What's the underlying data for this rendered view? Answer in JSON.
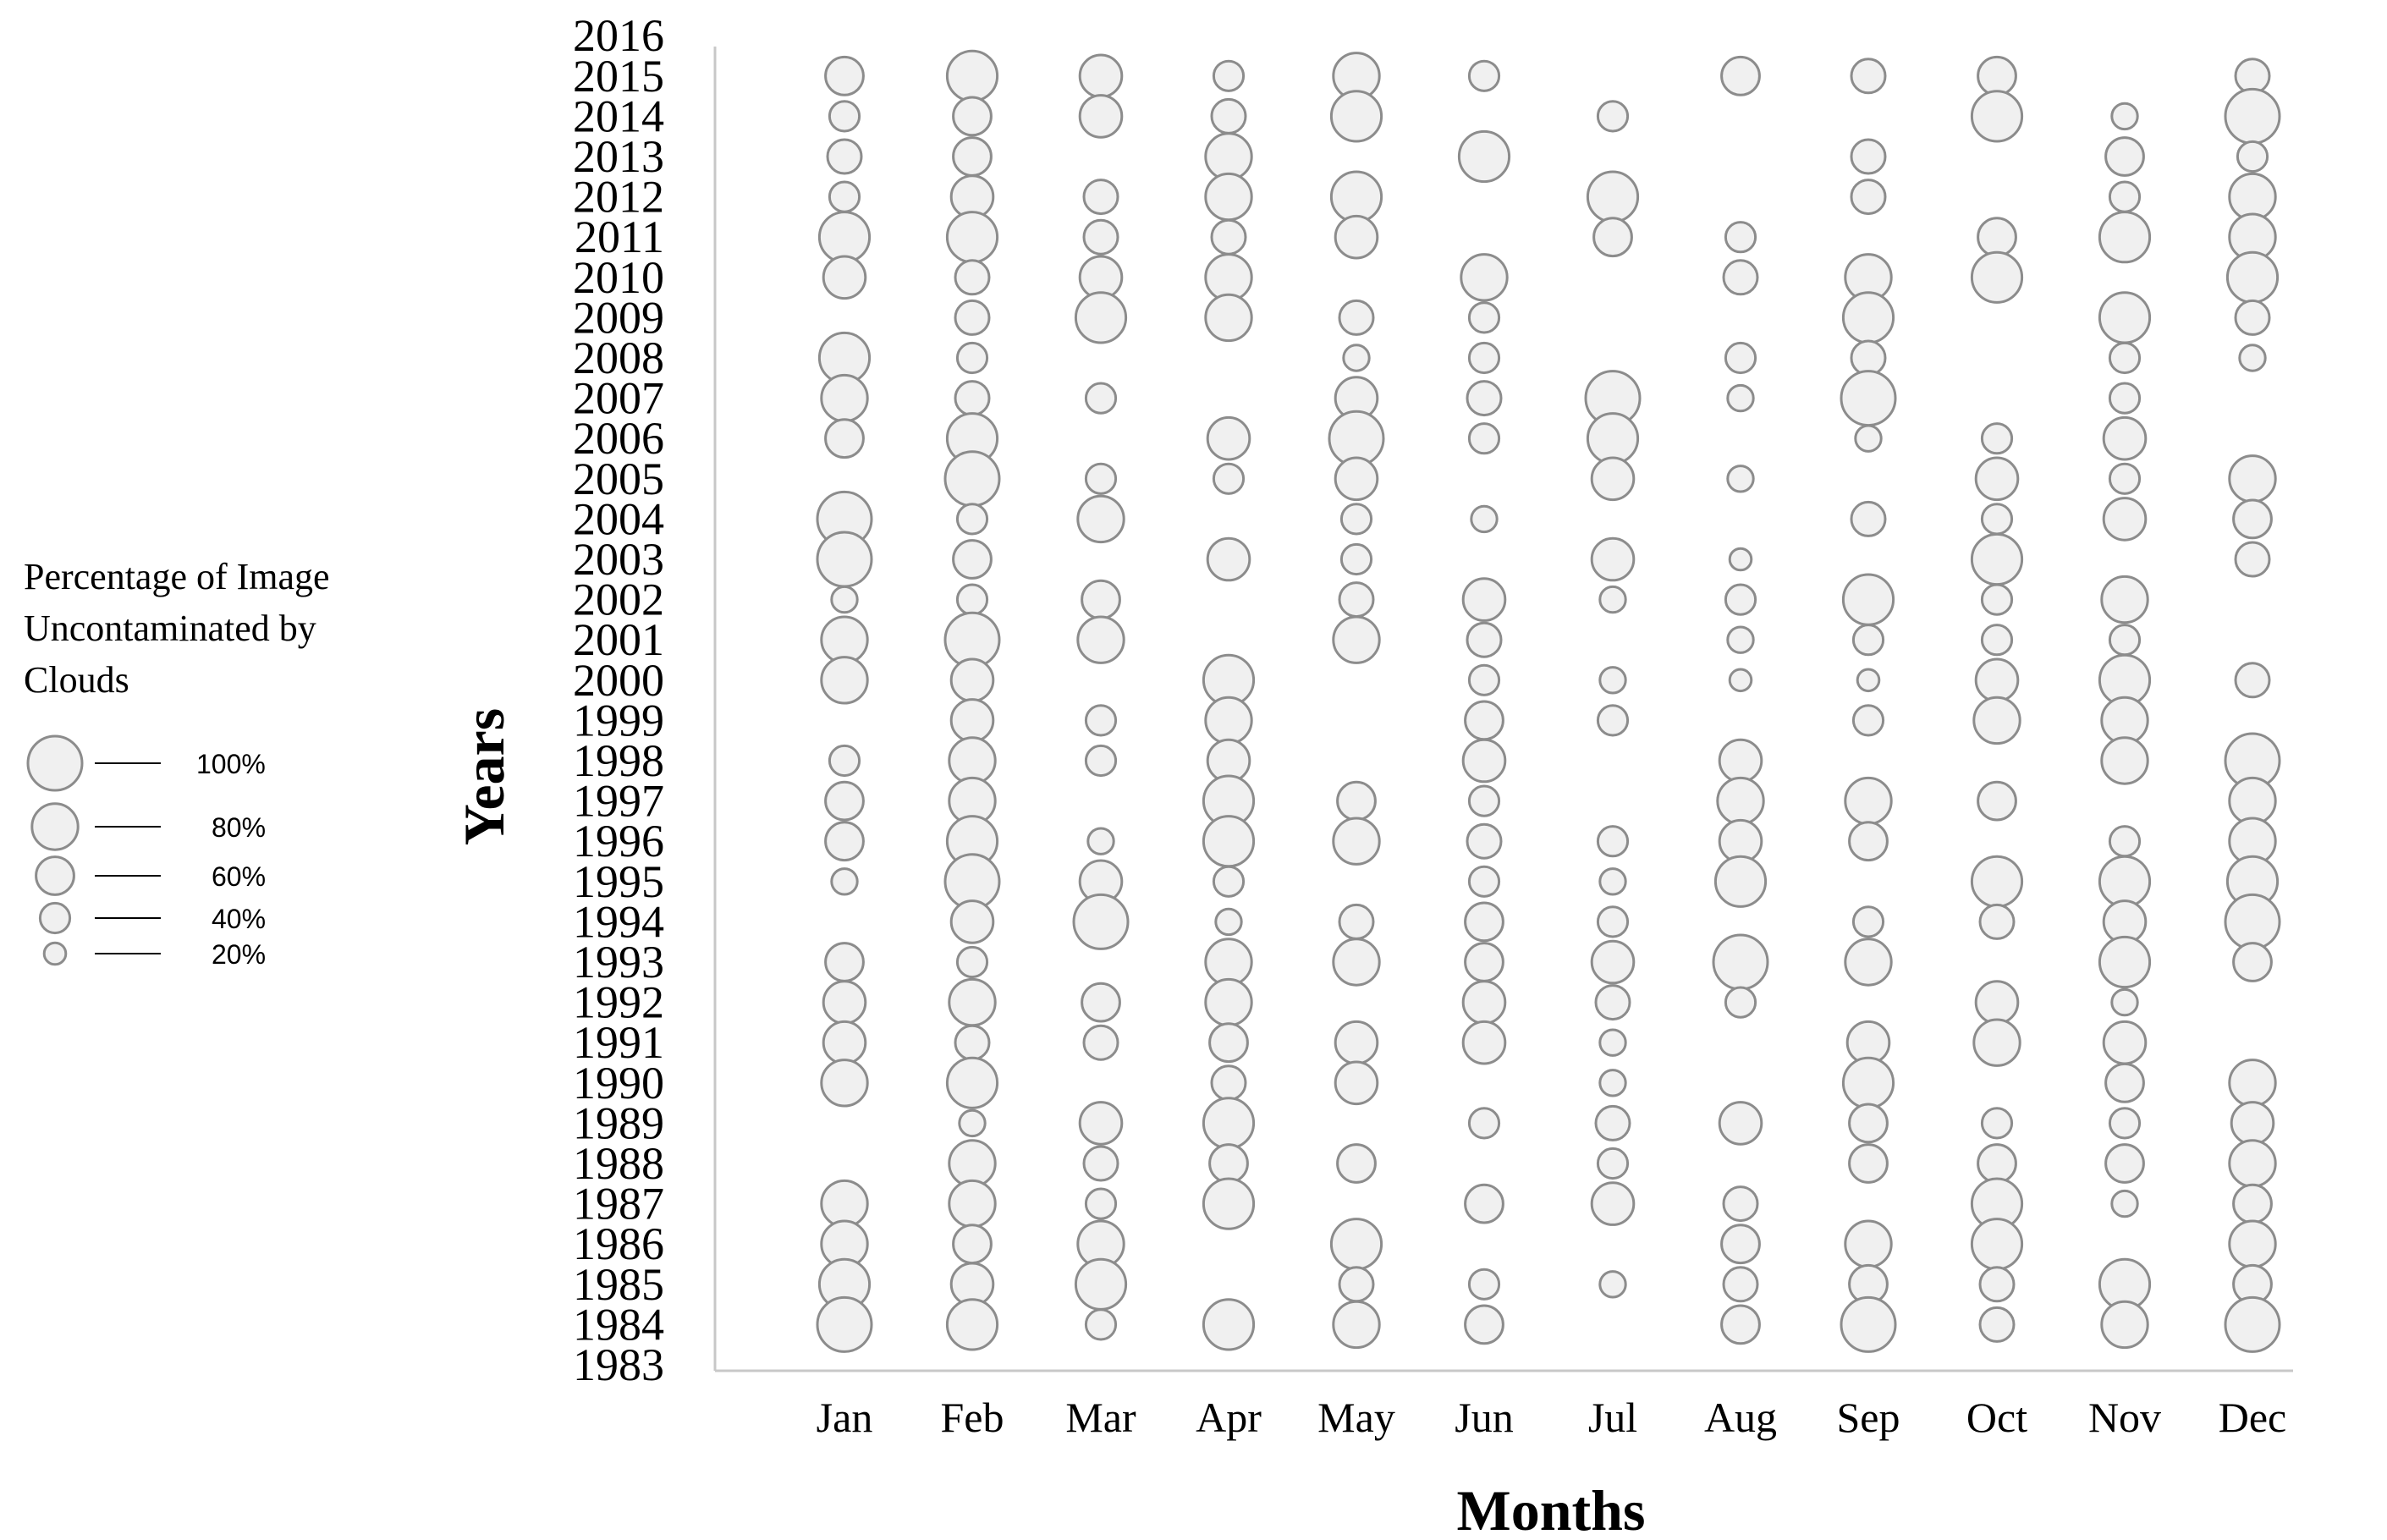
{
  "chart_data": {
    "type": "scatter",
    "subtype": "bubble",
    "xlabel": "Months",
    "ylabel": "Years",
    "categories": [
      "Jan",
      "Feb",
      "Mar",
      "Apr",
      "May",
      "Jun",
      "Jul",
      "Aug",
      "Sep",
      "Oct",
      "Nov",
      "Dec"
    ],
    "y_ticks": [
      2016,
      2015,
      2014,
      2013,
      2012,
      2011,
      2010,
      2009,
      2008,
      2007,
      2006,
      2005,
      2004,
      2003,
      2002,
      2001,
      2000,
      1999,
      1998,
      1997,
      1996,
      1995,
      1994,
      1993,
      1992,
      1991,
      1990,
      1989,
      1988,
      1987,
      1986,
      1985,
      1984,
      1983
    ],
    "ylim": [
      1983,
      2016
    ],
    "grid": false,
    "legend": {
      "title_lines": [
        "Percentage of Image",
        "Uncontaminated by",
        "Clouds"
      ],
      "placement": "left",
      "entries": [
        {
          "label": "100%",
          "value": 100
        },
        {
          "label": "80%",
          "value": 80
        },
        {
          "label": "60%",
          "value": 60
        },
        {
          "label": "40%",
          "value": 40
        },
        {
          "label": "20%",
          "value": 20
        }
      ]
    },
    "colors": {
      "bubble_fill": "#f0f0f0",
      "bubble_stroke": "#8c8c8c",
      "axis": "#c8c8c8"
    },
    "series": [
      {
        "month": "Jan",
        "points": [
          [
            2015,
            60
          ],
          [
            2014,
            40
          ],
          [
            2013,
            50
          ],
          [
            2012,
            40
          ],
          [
            2011,
            90
          ],
          [
            2010,
            70
          ],
          [
            2008,
            90
          ],
          [
            2007,
            80
          ],
          [
            2006,
            60
          ],
          [
            2004,
            100
          ],
          [
            2003,
            100
          ],
          [
            2002,
            30
          ],
          [
            2001,
            80
          ],
          [
            2000,
            80
          ],
          [
            1998,
            40
          ],
          [
            1997,
            60
          ],
          [
            1996,
            60
          ],
          [
            1995,
            30
          ],
          [
            1993,
            60
          ],
          [
            1992,
            70
          ],
          [
            1991,
            70
          ],
          [
            1990,
            80
          ],
          [
            1987,
            80
          ],
          [
            1986,
            80
          ],
          [
            1985,
            90
          ],
          [
            1984,
            100
          ]
        ]
      },
      {
        "month": "Feb",
        "points": [
          [
            2015,
            90
          ],
          [
            2014,
            60
          ],
          [
            2013,
            60
          ],
          [
            2012,
            70
          ],
          [
            2011,
            90
          ],
          [
            2010,
            50
          ],
          [
            2009,
            50
          ],
          [
            2008,
            40
          ],
          [
            2007,
            50
          ],
          [
            2006,
            90
          ],
          [
            2005,
            100
          ],
          [
            2004,
            40
          ],
          [
            2003,
            60
          ],
          [
            2002,
            40
          ],
          [
            2001,
            100
          ],
          [
            2000,
            70
          ],
          [
            1999,
            70
          ],
          [
            1998,
            80
          ],
          [
            1997,
            80
          ],
          [
            1996,
            90
          ],
          [
            1995,
            100
          ],
          [
            1994,
            70
          ],
          [
            1993,
            40
          ],
          [
            1992,
            80
          ],
          [
            1991,
            50
          ],
          [
            1990,
            90
          ],
          [
            1989,
            30
          ],
          [
            1988,
            80
          ],
          [
            1987,
            80
          ],
          [
            1986,
            60
          ],
          [
            1985,
            70
          ],
          [
            1984,
            90
          ]
        ]
      },
      {
        "month": "Mar",
        "points": [
          [
            2015,
            70
          ],
          [
            2014,
            70
          ],
          [
            2012,
            50
          ],
          [
            2011,
            50
          ],
          [
            2010,
            70
          ],
          [
            2009,
            90
          ],
          [
            2007,
            40
          ],
          [
            2005,
            40
          ],
          [
            2004,
            80
          ],
          [
            2002,
            60
          ],
          [
            2001,
            80
          ],
          [
            1999,
            40
          ],
          [
            1998,
            40
          ],
          [
            1996,
            30
          ],
          [
            1995,
            70
          ],
          [
            1994,
            100
          ],
          [
            1992,
            60
          ],
          [
            1991,
            50
          ],
          [
            1989,
            70
          ],
          [
            1988,
            50
          ],
          [
            1987,
            40
          ],
          [
            1986,
            80
          ],
          [
            1985,
            90
          ],
          [
            1984,
            40
          ]
        ]
      },
      {
        "month": "Apr",
        "points": [
          [
            2015,
            40
          ],
          [
            2014,
            50
          ],
          [
            2013,
            80
          ],
          [
            2012,
            80
          ],
          [
            2011,
            50
          ],
          [
            2010,
            80
          ],
          [
            2009,
            80
          ],
          [
            2006,
            70
          ],
          [
            2005,
            40
          ],
          [
            2003,
            70
          ],
          [
            2000,
            90
          ],
          [
            1999,
            80
          ],
          [
            1998,
            70
          ],
          [
            1997,
            90
          ],
          [
            1996,
            90
          ],
          [
            1995,
            40
          ],
          [
            1994,
            30
          ],
          [
            1993,
            80
          ],
          [
            1992,
            80
          ],
          [
            1991,
            60
          ],
          [
            1990,
            50
          ],
          [
            1989,
            90
          ],
          [
            1988,
            60
          ],
          [
            1987,
            90
          ],
          [
            1984,
            90
          ]
        ]
      },
      {
        "month": "May",
        "points": [
          [
            2015,
            80
          ],
          [
            2014,
            90
          ],
          [
            2012,
            90
          ],
          [
            2011,
            70
          ],
          [
            2009,
            50
          ],
          [
            2008,
            30
          ],
          [
            2007,
            70
          ],
          [
            2006,
            100
          ],
          [
            2005,
            70
          ],
          [
            2004,
            40
          ],
          [
            2003,
            40
          ],
          [
            2002,
            50
          ],
          [
            2001,
            80
          ],
          [
            1997,
            60
          ],
          [
            1996,
            80
          ],
          [
            1994,
            50
          ],
          [
            1993,
            80
          ],
          [
            1991,
            70
          ],
          [
            1990,
            70
          ],
          [
            1988,
            60
          ],
          [
            1986,
            90
          ],
          [
            1985,
            50
          ],
          [
            1984,
            80
          ]
        ]
      },
      {
        "month": "Jun",
        "points": [
          [
            2015,
            40
          ],
          [
            2013,
            90
          ],
          [
            2010,
            80
          ],
          [
            2009,
            40
          ],
          [
            2008,
            40
          ],
          [
            2007,
            50
          ],
          [
            2006,
            40
          ],
          [
            2004,
            30
          ],
          [
            2002,
            70
          ],
          [
            2001,
            50
          ],
          [
            2000,
            40
          ],
          [
            1999,
            60
          ],
          [
            1998,
            70
          ],
          [
            1997,
            40
          ],
          [
            1996,
            50
          ],
          [
            1995,
            40
          ],
          [
            1994,
            60
          ],
          [
            1993,
            60
          ],
          [
            1992,
            70
          ],
          [
            1991,
            70
          ],
          [
            1989,
            40
          ],
          [
            1987,
            60
          ],
          [
            1985,
            40
          ],
          [
            1984,
            60
          ]
        ]
      },
      {
        "month": "Jul",
        "points": [
          [
            2014,
            40
          ],
          [
            2012,
            90
          ],
          [
            2011,
            60
          ],
          [
            2007,
            100
          ],
          [
            2006,
            90
          ],
          [
            2005,
            70
          ],
          [
            2003,
            70
          ],
          [
            2002,
            30
          ],
          [
            2000,
            30
          ],
          [
            1999,
            40
          ],
          [
            1996,
            40
          ],
          [
            1995,
            30
          ],
          [
            1994,
            40
          ],
          [
            1993,
            70
          ],
          [
            1992,
            50
          ],
          [
            1991,
            30
          ],
          [
            1990,
            30
          ],
          [
            1989,
            50
          ],
          [
            1988,
            40
          ],
          [
            1987,
            70
          ],
          [
            1985,
            30
          ]
        ]
      },
      {
        "month": "Aug",
        "points": [
          [
            2015,
            60
          ],
          [
            2011,
            40
          ],
          [
            2010,
            50
          ],
          [
            2008,
            40
          ],
          [
            2007,
            30
          ],
          [
            2005,
            30
          ],
          [
            2003,
            20
          ],
          [
            2002,
            40
          ],
          [
            2001,
            30
          ],
          [
            2000,
            20
          ],
          [
            1998,
            70
          ],
          [
            1997,
            80
          ],
          [
            1996,
            70
          ],
          [
            1995,
            90
          ],
          [
            1993,
            100
          ],
          [
            1992,
            40
          ],
          [
            1989,
            70
          ],
          [
            1987,
            50
          ],
          [
            1986,
            60
          ],
          [
            1985,
            50
          ],
          [
            1984,
            60
          ]
        ]
      },
      {
        "month": "Sep",
        "points": [
          [
            2015,
            50
          ],
          [
            2013,
            50
          ],
          [
            2012,
            50
          ],
          [
            2010,
            80
          ],
          [
            2009,
            90
          ],
          [
            2008,
            50
          ],
          [
            2007,
            100
          ],
          [
            2006,
            30
          ],
          [
            2004,
            50
          ],
          [
            2002,
            90
          ],
          [
            2001,
            40
          ],
          [
            2000,
            20
          ],
          [
            1999,
            40
          ],
          [
            1997,
            80
          ],
          [
            1996,
            60
          ],
          [
            1994,
            40
          ],
          [
            1993,
            80
          ],
          [
            1991,
            70
          ],
          [
            1990,
            90
          ],
          [
            1989,
            60
          ],
          [
            1988,
            60
          ],
          [
            1986,
            80
          ],
          [
            1985,
            60
          ],
          [
            1984,
            100
          ]
        ]
      },
      {
        "month": "Oct",
        "points": [
          [
            2015,
            60
          ],
          [
            2014,
            90
          ],
          [
            2011,
            60
          ],
          [
            2010,
            90
          ],
          [
            2006,
            40
          ],
          [
            2005,
            70
          ],
          [
            2004,
            40
          ],
          [
            2003,
            90
          ],
          [
            2002,
            40
          ],
          [
            2001,
            40
          ],
          [
            2000,
            70
          ],
          [
            1999,
            80
          ],
          [
            1997,
            60
          ],
          [
            1995,
            90
          ],
          [
            1994,
            50
          ],
          [
            1992,
            70
          ],
          [
            1991,
            80
          ],
          [
            1989,
            40
          ],
          [
            1988,
            60
          ],
          [
            1987,
            90
          ],
          [
            1986,
            90
          ],
          [
            1985,
            50
          ],
          [
            1984,
            50
          ]
        ]
      },
      {
        "month": "Nov",
        "points": [
          [
            2014,
            30
          ],
          [
            2013,
            60
          ],
          [
            2012,
            40
          ],
          [
            2011,
            90
          ],
          [
            2009,
            90
          ],
          [
            2008,
            40
          ],
          [
            2007,
            40
          ],
          [
            2006,
            70
          ],
          [
            2005,
            40
          ],
          [
            2004,
            70
          ],
          [
            2002,
            80
          ],
          [
            2001,
            40
          ],
          [
            2000,
            90
          ],
          [
            1999,
            80
          ],
          [
            1998,
            80
          ],
          [
            1996,
            40
          ],
          [
            1995,
            90
          ],
          [
            1994,
            70
          ],
          [
            1993,
            90
          ],
          [
            1992,
            30
          ],
          [
            1991,
            70
          ],
          [
            1990,
            60
          ],
          [
            1989,
            40
          ],
          [
            1988,
            60
          ],
          [
            1987,
            30
          ],
          [
            1985,
            90
          ],
          [
            1984,
            80
          ]
        ]
      },
      {
        "month": "Dec",
        "points": [
          [
            2015,
            50
          ],
          [
            2014,
            100
          ],
          [
            2013,
            40
          ],
          [
            2012,
            80
          ],
          [
            2011,
            80
          ],
          [
            2010,
            90
          ],
          [
            2009,
            50
          ],
          [
            2008,
            30
          ],
          [
            2005,
            80
          ],
          [
            2004,
            60
          ],
          [
            2003,
            50
          ],
          [
            2000,
            50
          ],
          [
            1998,
            100
          ],
          [
            1997,
            80
          ],
          [
            1996,
            80
          ],
          [
            1995,
            90
          ],
          [
            1994,
            100
          ],
          [
            1993,
            60
          ],
          [
            1990,
            80
          ],
          [
            1989,
            70
          ],
          [
            1988,
            80
          ],
          [
            1987,
            60
          ],
          [
            1986,
            80
          ],
          [
            1985,
            60
          ],
          [
            1984,
            100
          ]
        ]
      }
    ]
  }
}
